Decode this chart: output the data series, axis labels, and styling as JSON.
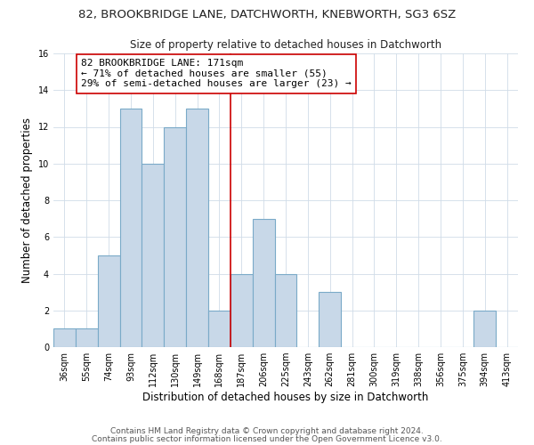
{
  "title_line1": "82, BROOKBRIDGE LANE, DATCHWORTH, KNEBWORTH, SG3 6SZ",
  "title_line2": "Size of property relative to detached houses in Datchworth",
  "xlabel": "Distribution of detached houses by size in Datchworth",
  "ylabel": "Number of detached properties",
  "bar_labels": [
    "36sqm",
    "55sqm",
    "74sqm",
    "93sqm",
    "112sqm",
    "130sqm",
    "149sqm",
    "168sqm",
    "187sqm",
    "206sqm",
    "225sqm",
    "243sqm",
    "262sqm",
    "281sqm",
    "300sqm",
    "319sqm",
    "338sqm",
    "356sqm",
    "375sqm",
    "394sqm",
    "413sqm"
  ],
  "bar_values": [
    1,
    1,
    5,
    13,
    10,
    12,
    13,
    2,
    4,
    7,
    4,
    0,
    3,
    0,
    0,
    0,
    0,
    0,
    0,
    2,
    0
  ],
  "bar_color": "#c8d8e8",
  "bar_edge_color": "#7aaac8",
  "vline_color": "#cc0000",
  "annotation_text": "82 BROOKBRIDGE LANE: 171sqm\n← 71% of detached houses are smaller (55)\n29% of semi-detached houses are larger (23) →",
  "annotation_box_edge_color": "#cc0000",
  "annotation_box_face_color": "#ffffff",
  "ylim": [
    0,
    16
  ],
  "yticks": [
    0,
    2,
    4,
    6,
    8,
    10,
    12,
    14,
    16
  ],
  "footer_line1": "Contains HM Land Registry data © Crown copyright and database right 2024.",
  "footer_line2": "Contains public sector information licensed under the Open Government Licence v3.0.",
  "title_fontsize": 9.5,
  "subtitle_fontsize": 8.5,
  "axis_label_fontsize": 8.5,
  "tick_fontsize": 7.0,
  "annotation_fontsize": 8.0,
  "footer_fontsize": 6.5
}
